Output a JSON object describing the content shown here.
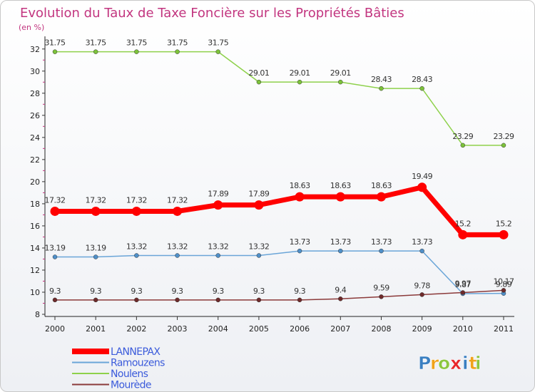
{
  "chart_data": {
    "type": "line",
    "title": "Evolution du Taux de Taxe Foncière sur les Propriétés Bâties",
    "unit_label": "(en %)",
    "xlabel": "",
    "ylabel": "",
    "categories": [
      "2000",
      "2001",
      "2002",
      "2003",
      "2004",
      "2005",
      "2006",
      "2007",
      "2008",
      "2009",
      "2010",
      "2011"
    ],
    "yticks": [
      8,
      10,
      12,
      14,
      16,
      18,
      20,
      22,
      24,
      26,
      28,
      30,
      32
    ],
    "ylim": [
      8,
      32.5
    ],
    "grid": false,
    "legend_position": "bottom-left",
    "series": [
      {
        "name": "Noulens",
        "color": "#8ed14b",
        "marker_color": "#7cc23a",
        "emphasis": false,
        "values": [
          31.75,
          31.75,
          31.75,
          31.75,
          31.75,
          29.01,
          29.01,
          29.01,
          28.43,
          28.43,
          23.29,
          23.29
        ],
        "labels": [
          "31.75",
          "31.75",
          "31.75",
          "31.75",
          "31.75",
          "29.01",
          "29.01",
          "29.01",
          "28.43",
          "28.43",
          "23.29",
          "23.29"
        ]
      },
      {
        "name": "LANNEPAX",
        "color": "#ff0000",
        "marker_color": "#ff0000",
        "emphasis": true,
        "values": [
          17.32,
          17.32,
          17.32,
          17.32,
          17.89,
          17.89,
          18.63,
          18.63,
          18.63,
          19.49,
          15.2,
          15.2
        ],
        "labels": [
          "17.32",
          "17.32",
          "17.32",
          "17.32",
          "17.89",
          "17.89",
          "18.63",
          "18.63",
          "18.63",
          "19.49",
          "15.2",
          "15.2"
        ]
      },
      {
        "name": "Ramouzens",
        "color": "#6aa5d8",
        "marker_color": "#4f8fc8",
        "emphasis": false,
        "values": [
          13.19,
          13.19,
          13.32,
          13.32,
          13.32,
          13.32,
          13.73,
          13.73,
          13.73,
          13.73,
          9.87,
          9.89
        ],
        "labels": [
          "13.19",
          "13.19",
          "13.32",
          "13.32",
          "13.32",
          "13.32",
          "13.73",
          "13.73",
          "13.73",
          "13.73",
          "9.87",
          "9.89"
        ]
      },
      {
        "name": "Mourède",
        "color": "#8b3a3a",
        "marker_color": "#6e2a2a",
        "emphasis": false,
        "values": [
          9.3,
          9.3,
          9.3,
          9.3,
          9.3,
          9.3,
          9.3,
          9.4,
          9.59,
          9.78,
          9.97,
          10.17
        ],
        "labels": [
          "9.3",
          "9.3",
          "9.3",
          "9.3",
          "9.3",
          "9.3",
          "9.3",
          "9.4",
          "9.59",
          "9.78",
          "9.97",
          "10.17"
        ]
      }
    ],
    "legend_order": [
      "LANNEPAX",
      "Ramouzens",
      "Noulens",
      "Mourède"
    ]
  },
  "logo": {
    "text": "Proxiti",
    "letters": [
      {
        "ch": "P",
        "color": "#3a7fc1"
      },
      {
        "ch": "r",
        "color": "#f0a21a"
      },
      {
        "ch": "o",
        "color": "#8cc63f"
      },
      {
        "ch": "x",
        "color": "#e8262a"
      },
      {
        "ch": "i",
        "color": "#3a7fc1"
      },
      {
        "ch": "t",
        "color": "#f0a21a"
      },
      {
        "ch": "i",
        "color": "#8cc63f"
      }
    ]
  }
}
